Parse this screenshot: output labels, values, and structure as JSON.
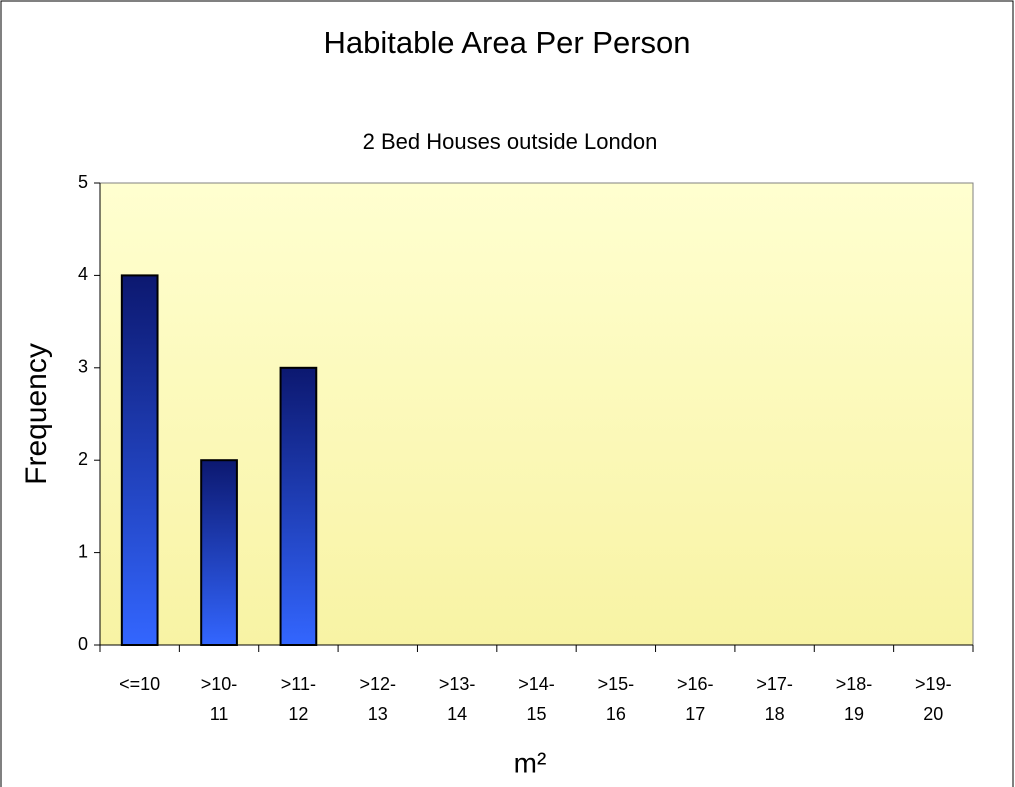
{
  "chart_data": {
    "type": "bar",
    "title": "Habitable Area Per Person",
    "subtitle": "2 Bed Houses outside London",
    "x_label": "m²",
    "y_label": "Frequency",
    "categories": [
      "<=10",
      ">10-11",
      ">11-12",
      ">12-13",
      ">13-14",
      ">14-15",
      ">15-16",
      ">16-17",
      ">17-18",
      ">18-19",
      ">19-20"
    ],
    "values": [
      4,
      2,
      3,
      0,
      0,
      0,
      0,
      0,
      0,
      0,
      0
    ],
    "color": "#3366ff",
    "ylim": [
      0,
      5
    ],
    "yticks": [
      0,
      1,
      2,
      3,
      4,
      5
    ],
    "grid": false
  }
}
